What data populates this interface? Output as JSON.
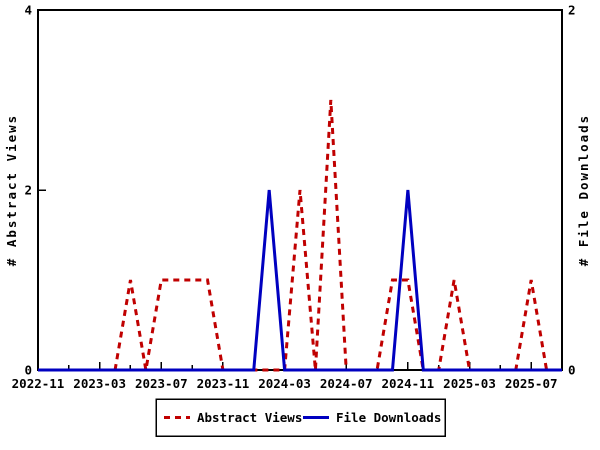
{
  "figure": {
    "background": "#ffffff",
    "border_color": "#000000"
  },
  "chart_data": {
    "type": "line",
    "title": "",
    "x": [
      "2022-11",
      "2022-12",
      "2023-01",
      "2023-02",
      "2023-03",
      "2023-04",
      "2023-05",
      "2023-06",
      "2023-07",
      "2023-08",
      "2023-09",
      "2023-10",
      "2023-11",
      "2023-12",
      "2024-01",
      "2024-02",
      "2024-03",
      "2024-04",
      "2024-05",
      "2024-06",
      "2024-07",
      "2024-08",
      "2024-09",
      "2024-10",
      "2024-11",
      "2024-12",
      "2025-01",
      "2025-02",
      "2025-03",
      "2025-04",
      "2025-05",
      "2025-06",
      "2025-07",
      "2025-08",
      "2025-09"
    ],
    "x_major_tick_labels": [
      "2022-11",
      "2023-03",
      "2023-07",
      "2023-11",
      "2024-03",
      "2024-07",
      "2024-11",
      "2025-03",
      "2025-07"
    ],
    "x_major_tick_every_months": 4,
    "x_minor_tick_every_months": 2,
    "series": [
      {
        "name": "Abstract Views",
        "axis": "left",
        "color": "#c00000",
        "line_style": "dashed",
        "values": [
          0,
          0,
          0,
          0,
          0,
          0,
          1,
          0,
          1,
          1,
          1,
          1,
          0,
          0,
          0,
          0,
          0,
          2,
          0,
          3,
          0,
          0,
          0,
          1,
          1,
          0,
          0,
          1,
          0,
          0,
          0,
          0,
          1,
          0,
          0
        ]
      },
      {
        "name": "File Downloads",
        "axis": "right",
        "color": "#0000c0",
        "line_style": "solid",
        "values": [
          0,
          0,
          0,
          0,
          0,
          0,
          0,
          0,
          0,
          0,
          0,
          0,
          0,
          0,
          0,
          1,
          0,
          0,
          0,
          0,
          0,
          0,
          0,
          0,
          1,
          0,
          0,
          0,
          0,
          0,
          0,
          0,
          0,
          0,
          0
        ]
      }
    ],
    "left_axis": {
      "label": "# Abstract Views",
      "range": [
        0,
        4
      ],
      "tick_values": [
        0,
        2,
        4
      ],
      "tick_labels": [
        "0",
        "2",
        "4"
      ]
    },
    "right_axis": {
      "label": "# File Downloads",
      "range": [
        0,
        2
      ],
      "tick_values": [
        0,
        2
      ],
      "tick_labels": [
        "0",
        "2"
      ]
    },
    "grid": false,
    "legend": {
      "position": "bottom-center",
      "entries": [
        {
          "label": "Abstract Views",
          "color": "#c00000",
          "line_style": "dashed"
        },
        {
          "label": "File Downloads",
          "color": "#0000c0",
          "line_style": "solid"
        }
      ]
    }
  }
}
